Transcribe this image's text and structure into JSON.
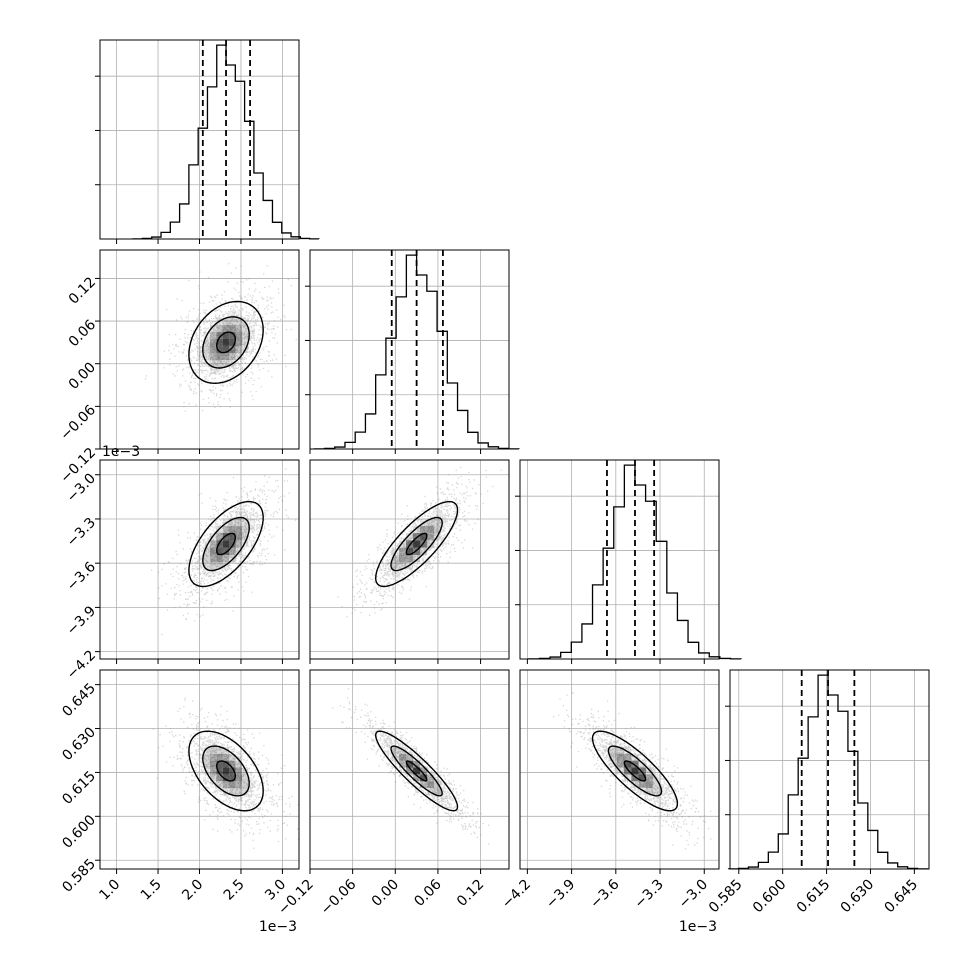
{
  "chart_data": {
    "type": "corner",
    "grid": true,
    "parameters": [
      {
        "range": [
          0.0008,
          0.0032
        ],
        "mean": 0.00232,
        "sd": 0.00028,
        "quantiles": [
          0.00204,
          0.00232,
          0.00261
        ]
      },
      {
        "range": [
          -0.12,
          0.16
        ],
        "mean": 0.03,
        "sd": 0.036,
        "quantiles": [
          -0.005,
          0.03,
          0.067
        ]
      },
      {
        "range": [
          -0.00425,
          -0.0029
        ],
        "mean": -0.00347,
        "sd": 0.00018,
        "quantiles": [
          -0.00366,
          -0.00347,
          -0.00334
        ]
      },
      {
        "range": [
          0.582,
          0.65
        ],
        "mean": 0.6155,
        "sd": 0.0085,
        "quantiles": [
          0.6065,
          0.6155,
          0.6245
        ]
      }
    ],
    "correlations": [
      {
        "pair": [
          0,
          1
        ],
        "r": 0.3
      },
      {
        "pair": [
          0,
          2
        ],
        "r": 0.62
      },
      {
        "pair": [
          0,
          3
        ],
        "r": -0.5
      },
      {
        "pair": [
          1,
          2
        ],
        "r": 0.8
      },
      {
        "pair": [
          1,
          3
        ],
        "r": -0.9
      },
      {
        "pair": [
          2,
          3
        ],
        "r": -0.82
      }
    ],
    "ticks": {
      "p0": {
        "values": [
          0.001,
          0.0015,
          0.002,
          0.0025,
          0.003
        ],
        "labels": [
          "1.0",
          "1.5",
          "2.0",
          "2.5",
          "3.0"
        ],
        "offset": "1e−3"
      },
      "p1": {
        "values": [
          -0.12,
          -0.06,
          0.0,
          0.06,
          0.12
        ],
        "labels": [
          "−0.12",
          "−0.06",
          "0.00",
          "0.06",
          "0.12"
        ],
        "offset": ""
      },
      "p2": {
        "values": [
          -0.0042,
          -0.0039,
          -0.0036,
          -0.0033,
          -0.003
        ],
        "labels": [
          "−4.2",
          "−3.9",
          "−3.6",
          "−3.3",
          "−3.0"
        ],
        "offset": "1e−3"
      },
      "p3": {
        "values": [
          0.585,
          0.6,
          0.615,
          0.63,
          0.645
        ],
        "labels": [
          "0.585",
          "0.600",
          "0.615",
          "0.630",
          "0.645"
        ],
        "offset": ""
      }
    },
    "hist_bins": 20,
    "hist_ticks": 4,
    "contour_levels": [
      0.4,
      1.0,
      1.6
    ],
    "colors": {
      "ink": "#000000",
      "grid": "#b0b0b0",
      "scatter": "#8c8c8c",
      "density": "#000000"
    }
  }
}
